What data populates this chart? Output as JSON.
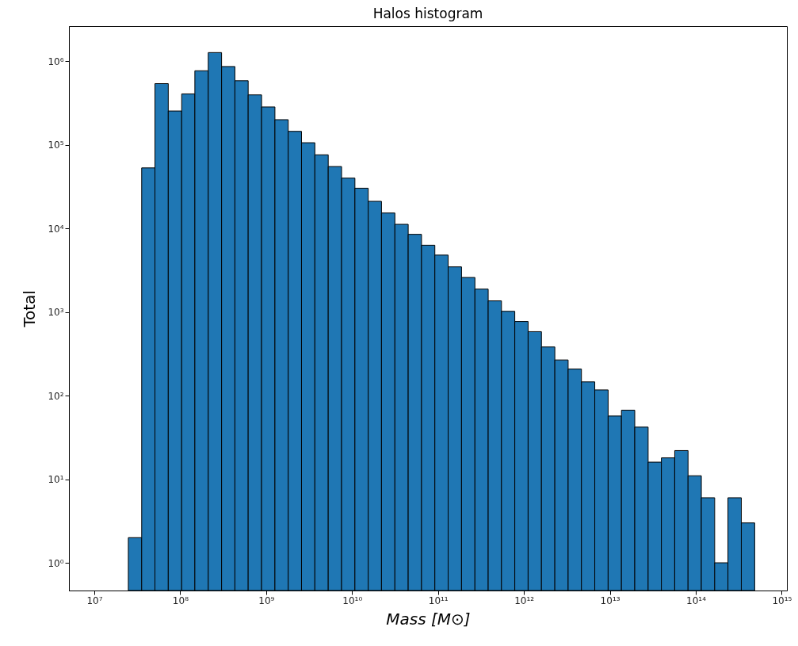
{
  "chart_data": {
    "type": "histogram",
    "title": "Halos histogram",
    "xlabel": "Mass [M⊙]",
    "ylabel": "Total",
    "color": "#1f77b4",
    "log": "xy",
    "grid": false,
    "bins": [
      24900000.0,
      35600000.0,
      50800000.0,
      72600000.0,
      104000000.0,
      148000000.0,
      212000000.0,
      303000000.0,
      433000000.0,
      618000000.0,
      885000000.0,
      1265000000.0,
      1807000000.0,
      2580000000.0,
      3690000000.0,
      5280000000.0,
      7550000000.0,
      10790000000.0,
      15420000000.0,
      22000000000.0,
      31500000000.0,
      45000000000.0,
      64300000000.0,
      91900000000.0,
      131300000000.0,
      187900000000.0,
      269000000000.0,
      384000000000.0,
      548000000000.0,
      783000000000.0,
      1119000000000.0,
      1600000000000.0,
      2290000000000.0,
      3270000000000.0,
      4670000000000.0,
      6680000000000.0,
      9550000000000.0,
      13650000000000.0,
      19500000000000.0,
      27900000000000.0,
      39800000000000.0,
      56900000000000.0,
      81300000000000.0,
      116100000000000.0,
      166000000000000.0,
      237000000000000.0,
      339000000000000.0,
      485000000000000.0
    ],
    "values": [
      2,
      53000,
      540000,
      254000,
      407000,
      770000,
      1270000,
      865000,
      585000,
      396000,
      284000,
      200000,
      145000,
      106000,
      76000,
      55000,
      40000,
      30300,
      21100,
      15300,
      11200,
      8500,
      6300,
      4800,
      3470,
      2590,
      1880,
      1360,
      1020,
      771,
      582,
      382,
      267,
      208,
      146,
      117,
      57,
      67,
      42,
      16,
      18,
      22,
      11,
      6,
      1,
      6,
      3
    ],
    "xlim": [
      5070000.0,
      1150000000000000.0
    ],
    "xticks": [
      {
        "value": 10000000.0,
        "label": "10⁷"
      },
      {
        "value": 100000000.0,
        "label": "10⁸"
      },
      {
        "value": 1000000000.0,
        "label": "10⁹"
      },
      {
        "value": 10000000000.0,
        "label": "10¹⁰"
      },
      {
        "value": 100000000000.0,
        "label": "10¹¹"
      },
      {
        "value": 1000000000000.0,
        "label": "10¹²"
      },
      {
        "value": 10000000000000.0,
        "label": "10¹³"
      },
      {
        "value": 100000000000000.0,
        "label": "10¹⁴"
      },
      {
        "value": 1000000000000000.0,
        "label": "10¹⁵"
      }
    ],
    "ylim": [
      0.466,
      2630000.0
    ],
    "yticks": [
      {
        "value": 1,
        "label": "10⁰"
      },
      {
        "value": 10,
        "label": "10¹"
      },
      {
        "value": 100,
        "label": "10²"
      },
      {
        "value": 1000,
        "label": "10³"
      },
      {
        "value": 10000,
        "label": "10⁴"
      },
      {
        "value": 100000,
        "label": "10⁵"
      },
      {
        "value": 1000000,
        "label": "10⁶"
      }
    ]
  }
}
